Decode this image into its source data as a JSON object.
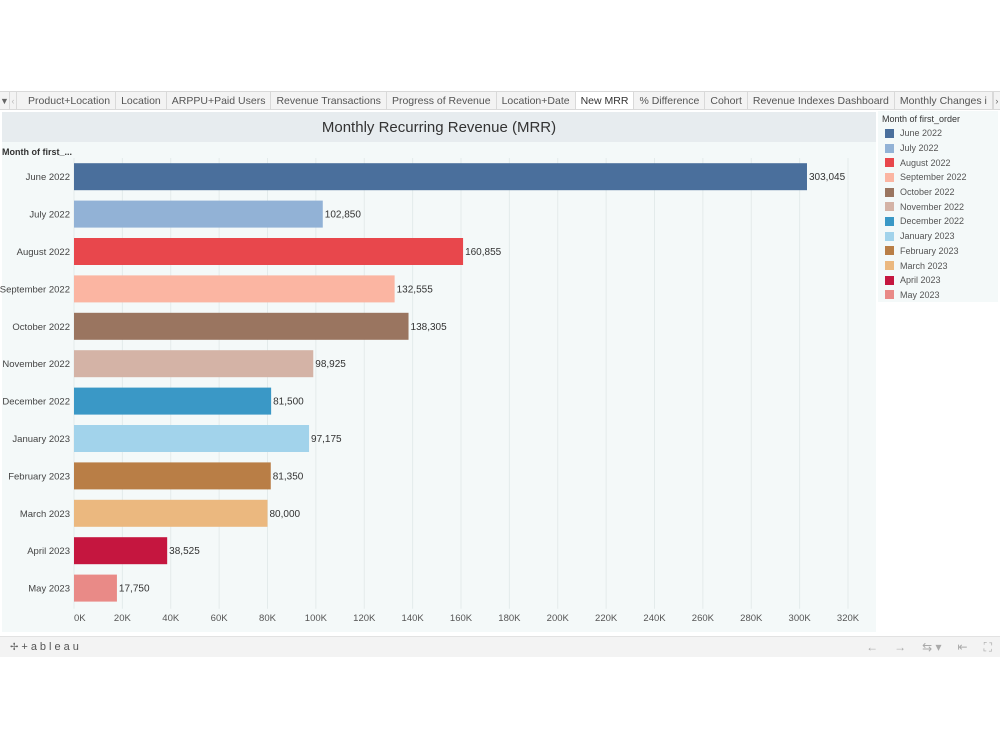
{
  "tabs": {
    "items": [
      {
        "label": "Product+Location"
      },
      {
        "label": "Location"
      },
      {
        "label": "ARPPU+Paid Users"
      },
      {
        "label": "Revenue Transactions"
      },
      {
        "label": "Progress of Revenue"
      },
      {
        "label": "Location+Date"
      },
      {
        "label": "New MRR"
      },
      {
        "label": "% Difference"
      },
      {
        "label": "Cohort"
      },
      {
        "label": "Revenue Indexes Dashboard"
      },
      {
        "label": "Monthly Changes i"
      }
    ],
    "active_index": 6
  },
  "icons": {
    "menu": "dropdown-arrow-icon",
    "prev": "chevron-left-icon",
    "next": "chevron-right-icon"
  },
  "chart_data": {
    "type": "bar",
    "orientation": "horizontal",
    "title": "Monthly Recurring Revenue (MRR)",
    "row_header": "Month of first_...",
    "categories": [
      "June 2022",
      "July 2022",
      "August 2022",
      "September 2022",
      "October 2022",
      "November 2022",
      "December 2022",
      "January 2023",
      "February 2023",
      "March 2023",
      "April 2023",
      "May 2023"
    ],
    "values": [
      303045,
      102850,
      160855,
      132555,
      138305,
      98925,
      81500,
      97175,
      81350,
      80000,
      38525,
      17750
    ],
    "value_labels": [
      "303,045",
      "102,850",
      "160,855",
      "132,555",
      "138,305",
      "98,925",
      "81,500",
      "97,175",
      "81,350",
      "80,000",
      "38,525",
      "17,750"
    ],
    "colors": [
      "#4a6f9c",
      "#92b2d6",
      "#e8474c",
      "#fbb5a2",
      "#9a7560",
      "#d4b3a6",
      "#3a98c6",
      "#a2d3eb",
      "#b97e46",
      "#ebb87f",
      "#c5163f",
      "#e98a87"
    ],
    "xlim": [
      0,
      320000
    ],
    "x_ticks": [
      0,
      20000,
      40000,
      60000,
      80000,
      100000,
      120000,
      140000,
      160000,
      180000,
      200000,
      220000,
      240000,
      260000,
      280000,
      300000,
      320000
    ],
    "x_tick_labels": [
      "0K",
      "20K",
      "40K",
      "60K",
      "80K",
      "100K",
      "120K",
      "140K",
      "160K",
      "180K",
      "200K",
      "220K",
      "240K",
      "260K",
      "280K",
      "300K",
      "320K"
    ],
    "grid": true,
    "legend": {
      "title": "Month of first_order",
      "position": "right"
    }
  },
  "footer": {
    "brand": "+ableau",
    "brand_icon": "✢"
  },
  "toolbar_icons": [
    "undo-icon",
    "redo-icon",
    "revert-icon",
    "reset-icon",
    "fullscreen-icon"
  ]
}
